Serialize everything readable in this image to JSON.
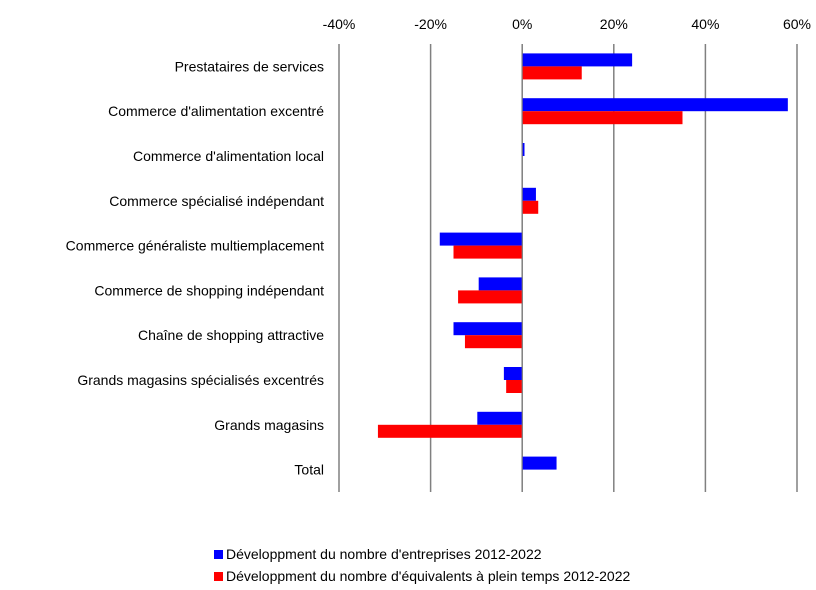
{
  "chart_data": {
    "type": "bar",
    "orientation": "horizontal",
    "categories": [
      "Prestataires de services",
      "Commerce d'alimentation excentré",
      "Commerce d'alimentation local",
      "Commerce spécialisé indépendant",
      "Commerce généraliste multiemplacement",
      "Commerce de shopping indépendant",
      "Chaîne de shopping attractive",
      "Grands magasins spécialisés excentrés",
      "Grands magasins",
      "Total"
    ],
    "series": [
      {
        "name": "Développment du nombre d'entreprises 2012-2022",
        "color": "#0000ff",
        "values": [
          24,
          58,
          0.5,
          3,
          -18,
          -9.5,
          -15,
          -4,
          -9.8,
          7.5
        ]
      },
      {
        "name": "Développment du nombre d'équivalents à plein temps 2012-2022",
        "color": "#ff0000",
        "values": [
          13,
          35,
          0,
          3.5,
          -15,
          -14,
          -12.5,
          -3.5,
          -31.5,
          0
        ]
      }
    ],
    "xlim": [
      -40,
      60
    ],
    "xticks": [
      -40,
      -20,
      0,
      20,
      40,
      60
    ],
    "tick_labels": [
      "-40%",
      "-20%",
      "0%",
      "20%",
      "40%",
      "60%"
    ],
    "grid": true,
    "legend_position": "bottom"
  }
}
